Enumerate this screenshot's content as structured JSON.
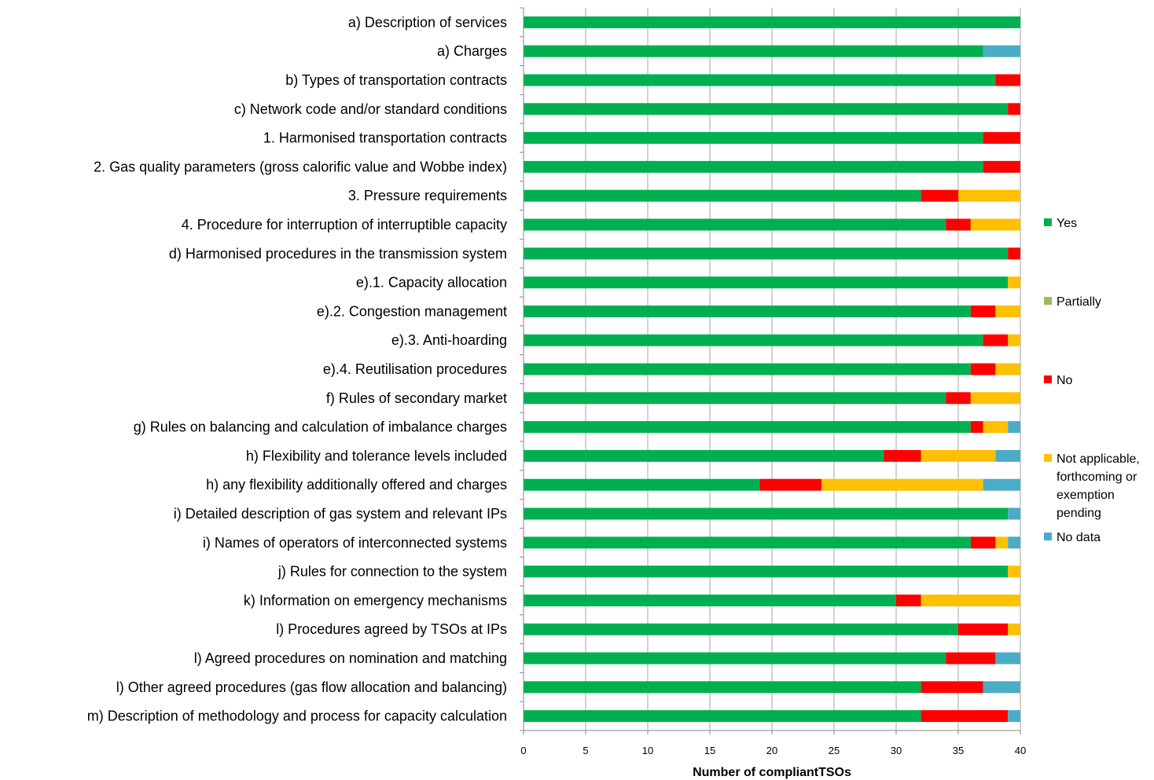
{
  "chart_data": {
    "type": "bar",
    "orientation": "horizontal",
    "stacked": true,
    "xlabel": "Number of compliantTSOs",
    "xlim": [
      0,
      40
    ],
    "xticks": [
      0,
      5,
      10,
      15,
      20,
      25,
      30,
      35,
      40
    ],
    "grid": true,
    "legend_position": "right",
    "categories": [
      "a) Description of services",
      "a) Charges",
      "b) Types of transportation contracts",
      "c) Network code and/or standard conditions",
      "1. Harmonised transportation contracts",
      "2. Gas quality parameters (gross calorific value and Wobbe index)",
      "3. Pressure requirements",
      "4. Procedure for interruption of interruptible capacity",
      "d) Harmonised procedures in the transmission system",
      "e).1. Capacity allocation",
      "e).2. Congestion management",
      "e).3. Anti-hoarding",
      "e).4. Reutilisation procedures",
      "f) Rules of secondary market",
      "g) Rules on balancing and calculation of imbalance charges",
      "h) Flexibility and tolerance levels included",
      "h) any flexibility additionally offered and charges",
      "i) Detailed description of  gas system and relevant IPs",
      "i) Names of operators of interconnected systems",
      "j) Rules for connection to the system",
      "k) Information on emergency mechanisms",
      "l) Procedures agreed by TSOs at IPs",
      "l) Agreed procedures on nomination and matching",
      "l) Other agreed procedures (gas flow allocation and balancing)",
      "m) Description of methodology and process for capacity calculation"
    ],
    "series": [
      {
        "name": "Yes",
        "color": "#00b050",
        "values": [
          40,
          37,
          38,
          39,
          37,
          37,
          32,
          34,
          39,
          39,
          36,
          37,
          36,
          34,
          36,
          29,
          19,
          39,
          36,
          39,
          30,
          35,
          34,
          32,
          32
        ]
      },
      {
        "name": "Partially",
        "color": "#9bbb59",
        "values": [
          0,
          0,
          0,
          0,
          0,
          0,
          0,
          0,
          0,
          0,
          0,
          0,
          0,
          0,
          0,
          0,
          0,
          0,
          0,
          0,
          0,
          0,
          0,
          0,
          0
        ]
      },
      {
        "name": "No",
        "color": "#ff0000",
        "values": [
          0,
          0,
          2,
          1,
          3,
          3,
          3,
          2,
          1,
          0,
          2,
          2,
          2,
          2,
          1,
          3,
          5,
          0,
          2,
          0,
          2,
          4,
          4,
          5,
          7
        ]
      },
      {
        "name": "Not applicable, forthcoming or exemption pending",
        "color": "#ffc000",
        "values": [
          0,
          0,
          0,
          0,
          0,
          0,
          5,
          4,
          0,
          1,
          2,
          1,
          2,
          4,
          2,
          6,
          13,
          0,
          1,
          1,
          8,
          1,
          0,
          0,
          0
        ]
      },
      {
        "name": "No data",
        "color": "#4bacc6",
        "values": [
          0,
          3,
          0,
          0,
          0,
          0,
          0,
          0,
          0,
          0,
          0,
          0,
          0,
          0,
          1,
          2,
          3,
          1,
          1,
          0,
          0,
          0,
          2,
          3,
          1
        ]
      }
    ],
    "legend_lines": [
      [
        "Yes"
      ],
      [
        "Partially"
      ],
      [
        "No"
      ],
      [
        "Not applicable,",
        "forthcoming or",
        "exemption",
        "pending"
      ],
      [
        "No data"
      ]
    ]
  }
}
